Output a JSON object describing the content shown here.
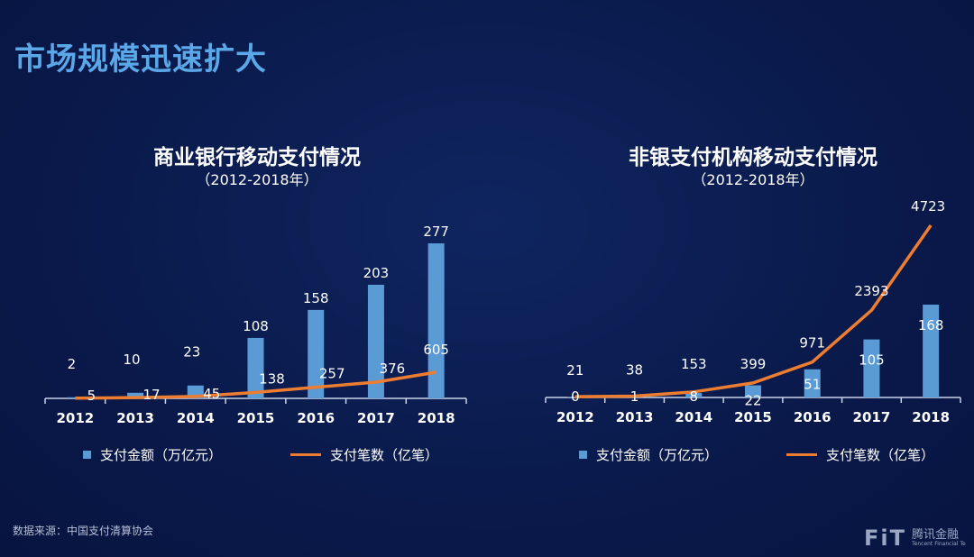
{
  "page": {
    "title": "市场规模迅速扩大",
    "source": "数据来源：中国支付清算协会",
    "logo": {
      "mark": "FiT",
      "name_cn": "腾讯金融",
      "name_en": "Tencent Financial Te"
    }
  },
  "colors": {
    "bar": "#5b9bd5",
    "line": "#ed7d31",
    "title": "#5aa8e8"
  },
  "chart_data": [
    {
      "type": "bar+line",
      "title": "商业银行移动支付情况",
      "subtitle": "（2012-2018年）",
      "categories": [
        "2012",
        "2013",
        "2014",
        "2015",
        "2016",
        "2017",
        "2018"
      ],
      "series": [
        {
          "name": "支付金额（万亿元）",
          "type": "bar",
          "axis": "primary",
          "values": [
            2,
            10,
            23,
            108,
            158,
            203,
            277
          ]
        },
        {
          "name": "支付笔数（亿笔）",
          "type": "line",
          "axis": "secondary",
          "values": [
            5,
            17,
            45,
            138,
            257,
            376,
            605
          ]
        }
      ],
      "legend": "bottom",
      "grid": false
    },
    {
      "type": "bar+line",
      "title": "非银支付机构移动支付情况",
      "subtitle": "（2012-2018年）",
      "categories": [
        "2012",
        "2013",
        "2014",
        "2015",
        "2016",
        "2017",
        "2018"
      ],
      "series": [
        {
          "name": "支付金额（万亿元）",
          "type": "bar",
          "axis": "primary",
          "values": [
            0,
            1,
            8,
            22,
            51,
            105,
            168
          ]
        },
        {
          "name": "支付笔数（亿笔）",
          "type": "line",
          "axis": "secondary",
          "values": [
            21,
            38,
            153,
            399,
            971,
            2393,
            4723
          ]
        }
      ],
      "legend": "bottom",
      "grid": false
    }
  ]
}
